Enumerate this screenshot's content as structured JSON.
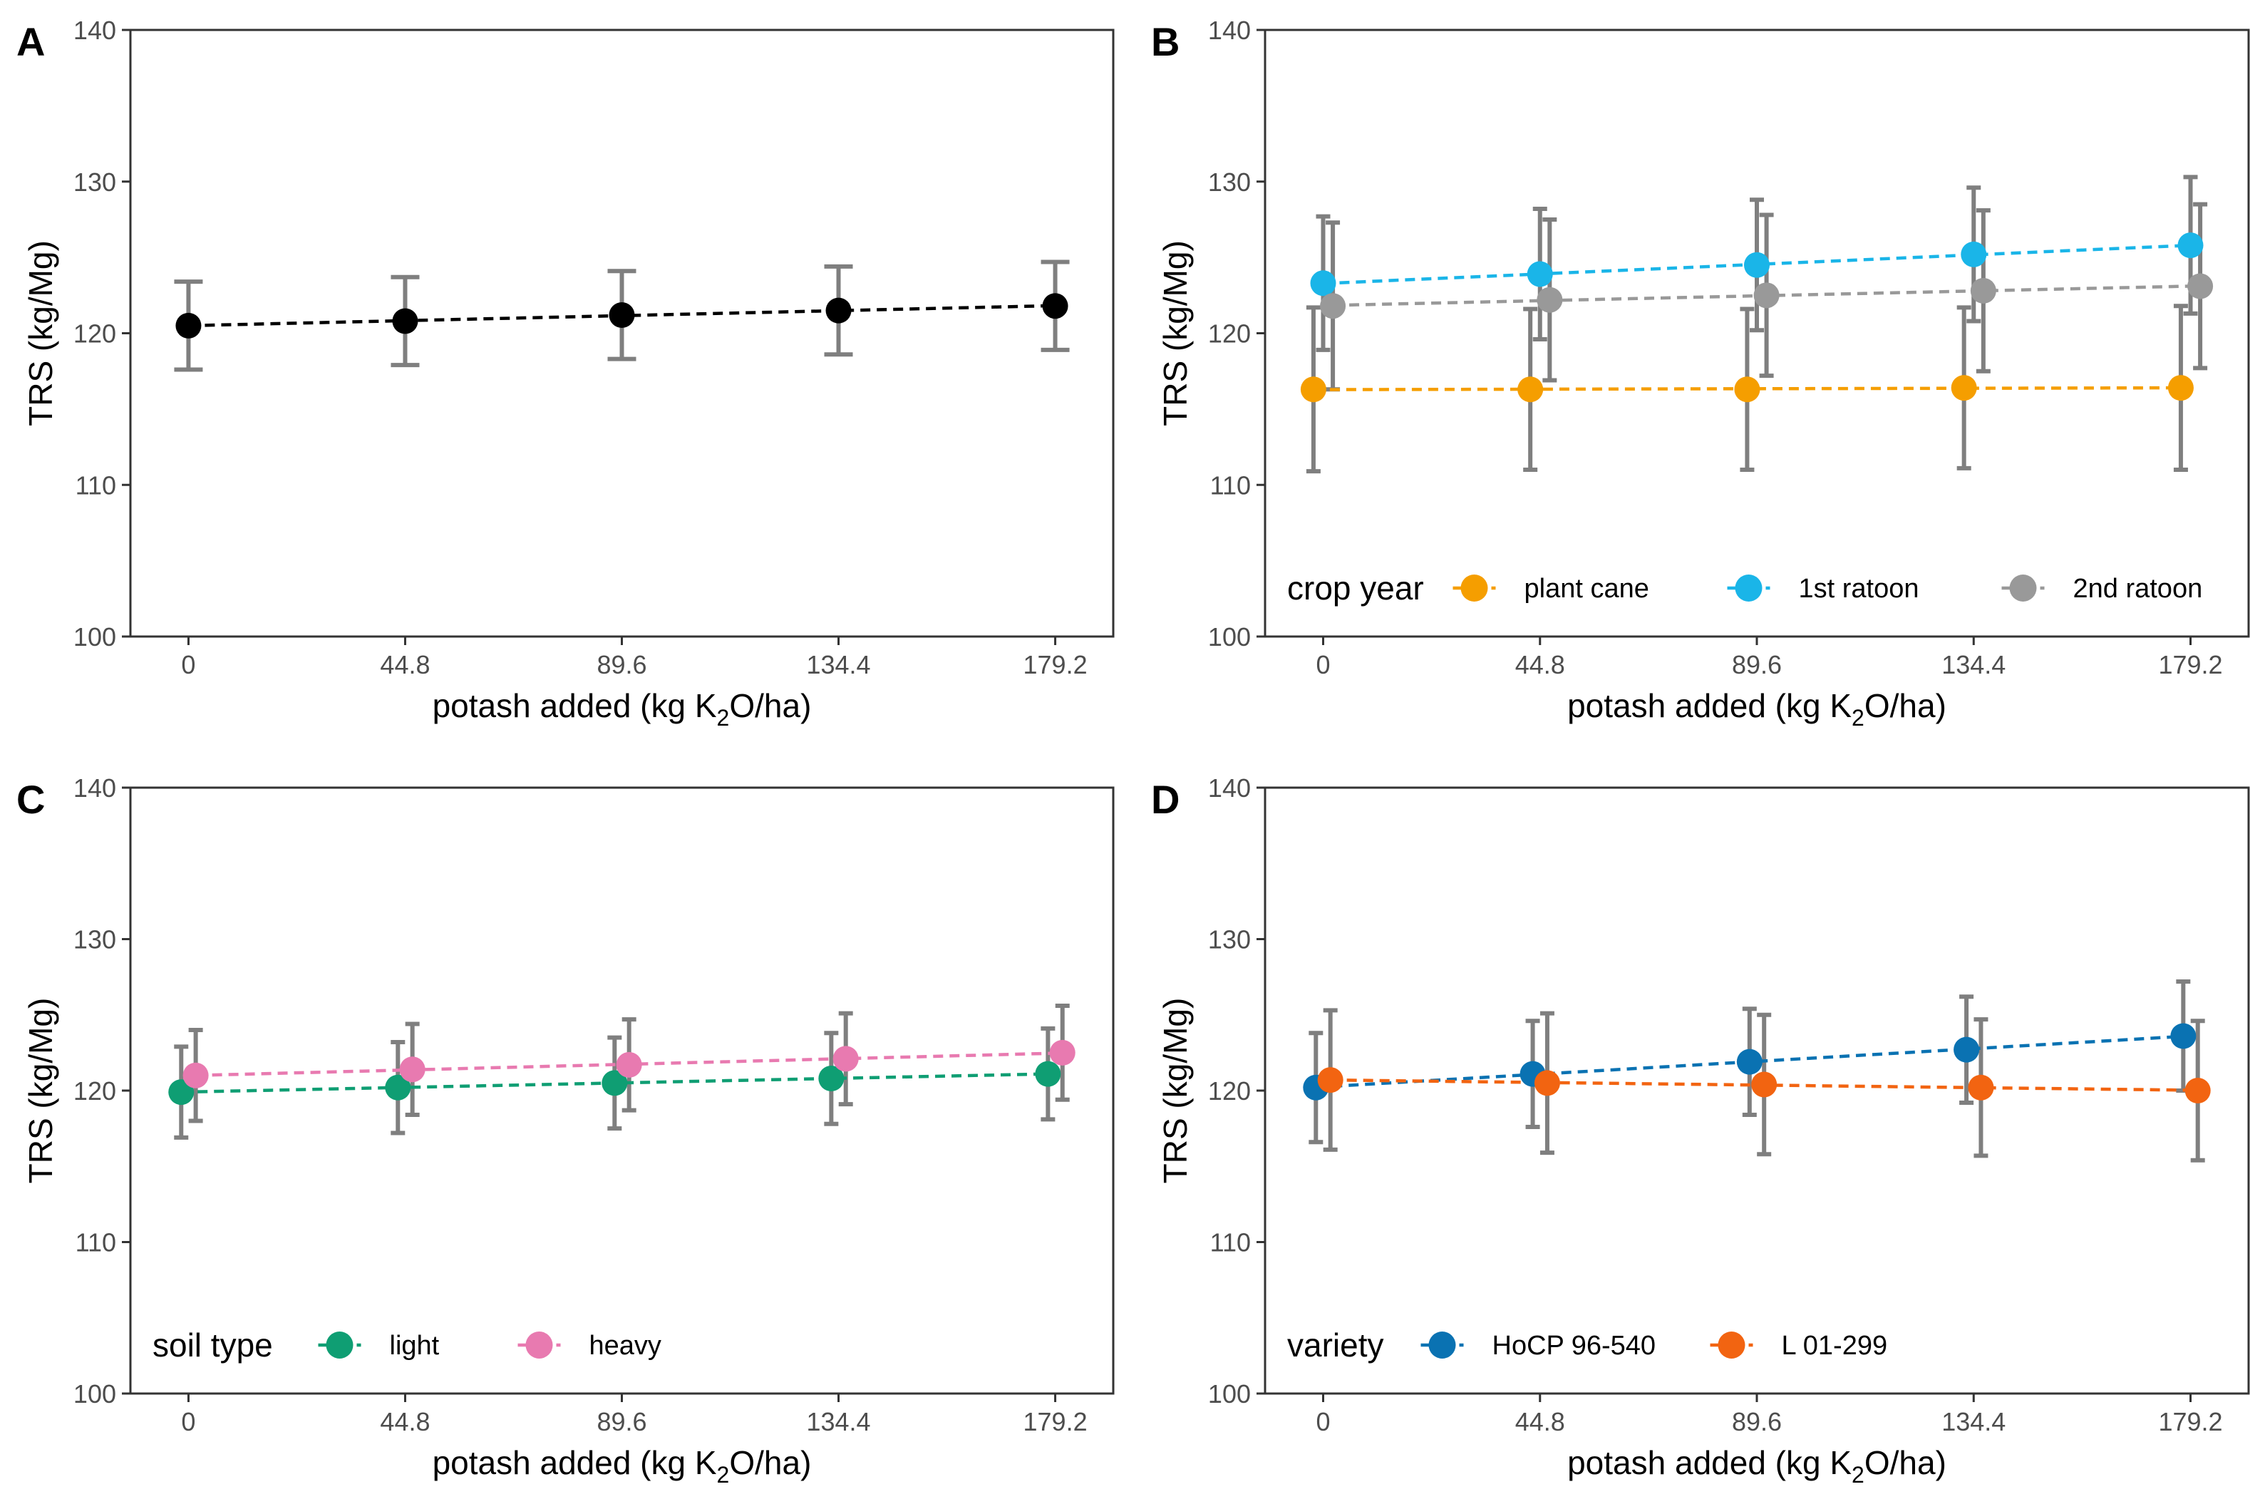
{
  "chart_data": [
    {
      "panel": "A",
      "type": "scatter",
      "xlabel": "potash added (kg K2O/ha)",
      "ylabel": "TRS (kg/Mg)",
      "x_ticks": [
        "0",
        "44.8",
        "89.6",
        "134.4",
        "179.2"
      ],
      "y_ticks": [
        "100",
        "110",
        "120",
        "130",
        "140"
      ],
      "xlim": [
        -12,
        191.2
      ],
      "ylim": [
        100,
        140
      ],
      "legend_title": "",
      "series": [
        {
          "name": "",
          "color": "#000000",
          "offset": 0,
          "x": [
            0,
            44.8,
            89.6,
            134.4,
            179.2
          ],
          "y": [
            120.5,
            120.8,
            121.2,
            121.5,
            121.8
          ],
          "err": [
            2.9,
            2.9,
            2.9,
            2.9,
            2.9
          ]
        }
      ]
    },
    {
      "panel": "B",
      "type": "scatter",
      "xlabel": "potash added (kg K2O/ha)",
      "ylabel": "TRS (kg/Mg)",
      "x_ticks": [
        "0",
        "44.8",
        "89.6",
        "134.4",
        "179.2"
      ],
      "y_ticks": [
        "100",
        "110",
        "120",
        "130",
        "140"
      ],
      "xlim": [
        -12,
        191.2
      ],
      "ylim": [
        100,
        140
      ],
      "legend_title": "crop year",
      "series": [
        {
          "name": "plant cane",
          "color": "#F59E00",
          "offset": -2,
          "x": [
            0,
            44.8,
            89.6,
            134.4,
            179.2
          ],
          "y": [
            116.3,
            116.3,
            116.3,
            116.4,
            116.4
          ],
          "err": [
            5.4,
            5.3,
            5.3,
            5.3,
            5.4
          ]
        },
        {
          "name": "1st ratoon",
          "color": "#1AB5E8",
          "offset": 0,
          "x": [
            0,
            44.8,
            89.6,
            134.4,
            179.2
          ],
          "y": [
            123.3,
            123.9,
            124.5,
            125.2,
            125.8
          ],
          "err": [
            4.4,
            4.3,
            4.3,
            4.4,
            4.5
          ]
        },
        {
          "name": "2nd ratoon",
          "color": "#999999",
          "offset": 2,
          "x": [
            0,
            44.8,
            89.6,
            134.4,
            179.2
          ],
          "y": [
            121.8,
            122.2,
            122.5,
            122.8,
            123.1
          ],
          "err": [
            5.5,
            5.3,
            5.3,
            5.3,
            5.4
          ]
        }
      ]
    },
    {
      "panel": "C",
      "type": "scatter",
      "xlabel": "potash added (kg K2O/ha)",
      "ylabel": "TRS (kg/Mg)",
      "x_ticks": [
        "0",
        "44.8",
        "89.6",
        "134.4",
        "179.2"
      ],
      "y_ticks": [
        "100",
        "110",
        "120",
        "130",
        "140"
      ],
      "xlim": [
        -12,
        191.2
      ],
      "ylim": [
        100,
        140
      ],
      "legend_title": "soil type",
      "series": [
        {
          "name": "light",
          "color": "#0F9E73",
          "offset": -1.5,
          "x": [
            0,
            44.8,
            89.6,
            134.4,
            179.2
          ],
          "y": [
            119.9,
            120.2,
            120.5,
            120.8,
            121.1
          ],
          "err": [
            3.0,
            3.0,
            3.0,
            3.0,
            3.0
          ]
        },
        {
          "name": "heavy",
          "color": "#E87AB0",
          "offset": 1.5,
          "x": [
            0,
            44.8,
            89.6,
            134.4,
            179.2
          ],
          "y": [
            121.0,
            121.4,
            121.7,
            122.1,
            122.5
          ],
          "err": [
            3.0,
            3.0,
            3.0,
            3.0,
            3.1
          ]
        }
      ]
    },
    {
      "panel": "D",
      "type": "scatter",
      "xlabel": "potash added (kg K2O/ha)",
      "ylabel": "TRS (kg/Mg)",
      "x_ticks": [
        "0",
        "44.8",
        "89.6",
        "134.4",
        "179.2"
      ],
      "y_ticks": [
        "100",
        "110",
        "120",
        "130",
        "140"
      ],
      "xlim": [
        -12,
        191.2
      ],
      "ylim": [
        100,
        140
      ],
      "legend_title": "variety",
      "series": [
        {
          "name": "HoCP 96-540",
          "color": "#0A72B2",
          "offset": -1.5,
          "x": [
            0,
            44.8,
            89.6,
            134.4,
            179.2
          ],
          "y": [
            120.2,
            121.1,
            121.9,
            122.7,
            123.6
          ],
          "err": [
            3.6,
            3.5,
            3.5,
            3.5,
            3.6
          ]
        },
        {
          "name": "L 01-299",
          "color": "#F26411",
          "offset": 1.5,
          "x": [
            0,
            44.8,
            89.6,
            134.4,
            179.2
          ],
          "y": [
            120.7,
            120.5,
            120.4,
            120.2,
            120.0
          ],
          "err": [
            4.6,
            4.6,
            4.6,
            4.5,
            4.6
          ]
        }
      ]
    }
  ]
}
